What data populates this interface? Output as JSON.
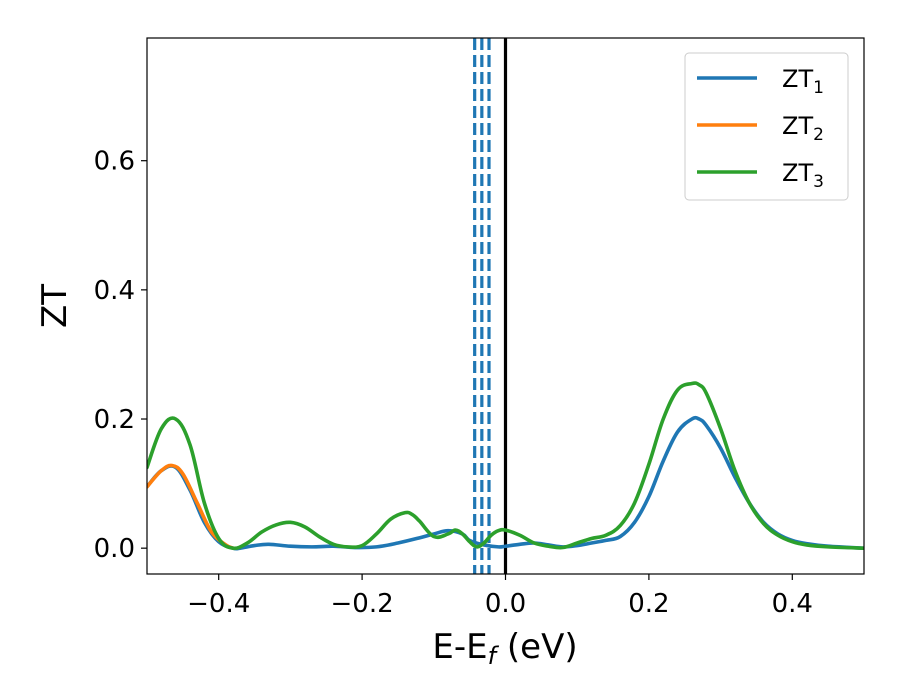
{
  "chart_data": {
    "type": "line",
    "xlabel": "E-E",
    "xlabel_sub": "f",
    "xlabel_unit": " (eV)",
    "ylabel": "ZT",
    "xlim": [
      -0.5,
      0.5
    ],
    "ylim": [
      -0.04,
      0.79
    ],
    "xticks": [
      -0.4,
      -0.2,
      0.0,
      0.2,
      0.4
    ],
    "xtick_labels": [
      "−0.4",
      "−0.2",
      "0.0",
      "0.2",
      "0.4"
    ],
    "yticks": [
      0.0,
      0.2,
      0.4,
      0.6
    ],
    "ytick_labels": [
      "0.0",
      "0.2",
      "0.4",
      "0.6"
    ],
    "grid": false,
    "legend_position": "top-right",
    "vertical_lines": [
      {
        "x": 0.0,
        "style": "solid",
        "color": "#000000"
      },
      {
        "x": -0.043,
        "style": "dashed",
        "color": "#1f77b4"
      },
      {
        "x": -0.033,
        "style": "dashed",
        "color": "#1f77b4"
      },
      {
        "x": -0.023,
        "style": "dashed",
        "color": "#1f77b4"
      }
    ],
    "series": [
      {
        "name": "ZT",
        "name_sub": "1",
        "color": "#1f77b4",
        "x": [
          -0.5,
          -0.48,
          -0.46,
          -0.44,
          -0.42,
          -0.4,
          -0.38,
          -0.37,
          -0.35,
          -0.33,
          -0.3,
          -0.27,
          -0.24,
          -0.21,
          -0.18,
          -0.15,
          -0.12,
          -0.1,
          -0.08,
          -0.06,
          -0.05,
          -0.03,
          -0.01,
          0.0,
          0.02,
          0.04,
          0.06,
          0.08,
          0.1,
          0.12,
          0.14,
          0.16,
          0.18,
          0.2,
          0.22,
          0.24,
          0.26,
          0.27,
          0.28,
          0.3,
          0.32,
          0.34,
          0.36,
          0.38,
          0.4,
          0.42,
          0.45,
          0.5
        ],
        "y": [
          0.095,
          0.12,
          0.125,
          0.09,
          0.04,
          0.01,
          0.0,
          0.0,
          0.004,
          0.006,
          0.003,
          0.002,
          0.003,
          0.001,
          0.002,
          0.008,
          0.016,
          0.022,
          0.027,
          0.022,
          0.012,
          0.005,
          0.002,
          0.003,
          0.006,
          0.008,
          0.005,
          0.002,
          0.004,
          0.008,
          0.012,
          0.018,
          0.04,
          0.08,
          0.135,
          0.18,
          0.2,
          0.2,
          0.19,
          0.155,
          0.11,
          0.07,
          0.04,
          0.022,
          0.012,
          0.007,
          0.003,
          0.0
        ]
      },
      {
        "name": "ZT",
        "name_sub": "2",
        "color": "#ff7f0e",
        "x": [
          -0.5,
          -0.48,
          -0.465,
          -0.45,
          -0.43,
          -0.41,
          -0.39,
          -0.38
        ],
        "y": [
          0.095,
          0.12,
          0.128,
          0.115,
          0.07,
          0.025,
          0.005,
          0.0
        ]
      },
      {
        "name": "ZT",
        "name_sub": "3",
        "color": "#2ca02c",
        "x": [
          -0.5,
          -0.48,
          -0.46,
          -0.44,
          -0.42,
          -0.4,
          -0.38,
          -0.36,
          -0.34,
          -0.32,
          -0.3,
          -0.28,
          -0.26,
          -0.24,
          -0.22,
          -0.2,
          -0.18,
          -0.16,
          -0.14,
          -0.13,
          -0.12,
          -0.1,
          -0.08,
          -0.07,
          -0.06,
          -0.05,
          -0.04,
          -0.03,
          -0.02,
          -0.01,
          0.0,
          0.02,
          0.04,
          0.06,
          0.08,
          0.1,
          0.12,
          0.14,
          0.16,
          0.18,
          0.2,
          0.22,
          0.24,
          0.26,
          0.27,
          0.28,
          0.3,
          0.32,
          0.34,
          0.36,
          0.38,
          0.4,
          0.42,
          0.45,
          0.5
        ],
        "y": [
          0.125,
          0.185,
          0.2,
          0.16,
          0.07,
          0.015,
          0.0,
          0.008,
          0.025,
          0.036,
          0.04,
          0.033,
          0.018,
          0.006,
          0.002,
          0.004,
          0.022,
          0.045,
          0.055,
          0.052,
          0.042,
          0.018,
          0.022,
          0.028,
          0.022,
          0.01,
          0.002,
          0.008,
          0.02,
          0.027,
          0.028,
          0.02,
          0.008,
          0.003,
          0.001,
          0.008,
          0.015,
          0.02,
          0.035,
          0.07,
          0.13,
          0.2,
          0.245,
          0.255,
          0.253,
          0.24,
          0.185,
          0.12,
          0.07,
          0.038,
          0.02,
          0.01,
          0.005,
          0.002,
          0.0
        ]
      }
    ]
  }
}
